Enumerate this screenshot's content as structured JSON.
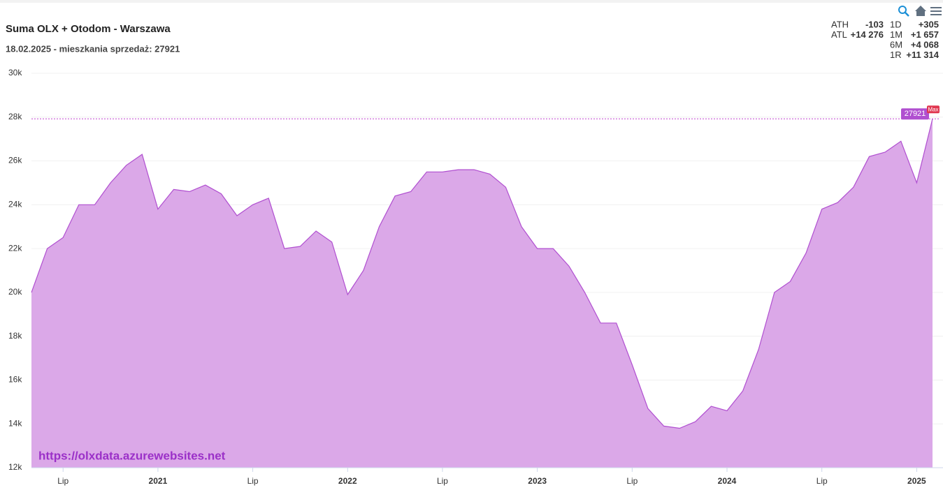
{
  "chart_data": {
    "type": "area",
    "title": "Suma OLX + Otodom - Warszawa",
    "subtitle": "18.02.2025 - mieszkania sprzedaż: 27921",
    "watermark": "https://olxdata.azurewebsites.net",
    "x": [
      "2020-05",
      "2020-06",
      "2020-07",
      "2020-08",
      "2020-09",
      "2020-10",
      "2020-11",
      "2020-12",
      "2021-01",
      "2021-02",
      "2021-03",
      "2021-04",
      "2021-05",
      "2021-06",
      "2021-07",
      "2021-08",
      "2021-09",
      "2021-10",
      "2021-11",
      "2021-12",
      "2022-01",
      "2022-02",
      "2022-03",
      "2022-04",
      "2022-05",
      "2022-06",
      "2022-07",
      "2022-08",
      "2022-09",
      "2022-10",
      "2022-11",
      "2022-12",
      "2023-01",
      "2023-02",
      "2023-03",
      "2023-04",
      "2023-05",
      "2023-06",
      "2023-07",
      "2023-08",
      "2023-09",
      "2023-10",
      "2023-11",
      "2023-12",
      "2024-01",
      "2024-02",
      "2024-03",
      "2024-04",
      "2024-05",
      "2024-06",
      "2024-07",
      "2024-08",
      "2024-09",
      "2024-10",
      "2024-11",
      "2024-12",
      "2025-01",
      "2025-02"
    ],
    "series": [
      {
        "name": "Suma OLX + Otodom - Warszawa",
        "color": "#b04fd0",
        "fill": "#dba8e8",
        "values": [
          20000,
          22000,
          22500,
          24000,
          24000,
          25000,
          25800,
          26300,
          23800,
          24700,
          24600,
          24900,
          24500,
          23500,
          24000,
          24300,
          22000,
          22100,
          22800,
          22300,
          19900,
          21000,
          23000,
          24400,
          24600,
          25500,
          25500,
          25600,
          25600,
          25400,
          24800,
          23000,
          22000,
          22000,
          21200,
          20000,
          18600,
          18600,
          16700,
          14700,
          13900,
          13800,
          14100,
          14800,
          14600,
          15500,
          17400,
          20000,
          20500,
          21800,
          23800,
          24100,
          24800,
          26200,
          26400,
          26900,
          25000,
          27921
        ]
      }
    ],
    "xlim": [
      "2020-05",
      "2025-02"
    ],
    "xticks": [
      {
        "value": "2020-07",
        "label": "Lip"
      },
      {
        "value": "2021-01",
        "label": "2021"
      },
      {
        "value": "2021-07",
        "label": "Lip"
      },
      {
        "value": "2022-01",
        "label": "2022"
      },
      {
        "value": "2022-07",
        "label": "Lip"
      },
      {
        "value": "2023-01",
        "label": "2023"
      },
      {
        "value": "2023-07",
        "label": "Lip"
      },
      {
        "value": "2024-01",
        "label": "2024"
      },
      {
        "value": "2024-07",
        "label": "Lip"
      },
      {
        "value": "2025-01",
        "label": "2025"
      }
    ],
    "ylim": [
      12000,
      30000
    ],
    "yticks": [
      {
        "value": 12000,
        "label": "12k"
      },
      {
        "value": 14000,
        "label": "14k"
      },
      {
        "value": 16000,
        "label": "16k"
      },
      {
        "value": 18000,
        "label": "18k"
      },
      {
        "value": 20000,
        "label": "20k"
      },
      {
        "value": 22000,
        "label": "22k"
      },
      {
        "value": 24000,
        "label": "24k"
      },
      {
        "value": 26000,
        "label": "26k"
      },
      {
        "value": 28000,
        "label": "28k"
      },
      {
        "value": 30000,
        "label": "30k"
      }
    ],
    "max_value": 27921,
    "max_tag": "Max",
    "stats": {
      "left": [
        {
          "label": "ATH",
          "value": "-103",
          "color": "#e0364f"
        },
        {
          "label": "ATL",
          "value": "+14 276",
          "color": "#118811"
        }
      ],
      "right": [
        {
          "label": "1D",
          "value": "+305",
          "color": "#118811"
        },
        {
          "label": "1M",
          "value": "+1 657",
          "color": "#118811"
        },
        {
          "label": "6M",
          "value": "+4 068",
          "color": "#118811"
        },
        {
          "label": "1R",
          "value": "+11 314",
          "color": "#118811"
        }
      ]
    }
  }
}
